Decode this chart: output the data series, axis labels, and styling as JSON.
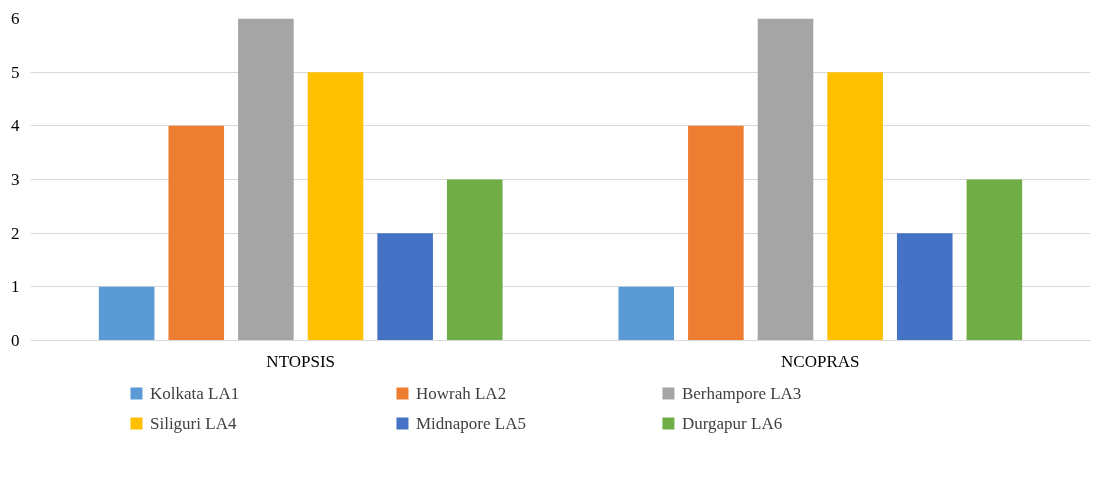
{
  "chart_data": {
    "type": "bar",
    "categories": [
      "NTOPSIS",
      "NCOPRAS"
    ],
    "series": [
      {
        "name": "Kolkata LA1",
        "color": "#5b9bd5",
        "values": [
          1,
          1
        ]
      },
      {
        "name": "Howrah LA2",
        "color": "#ed7d31",
        "values": [
          4,
          4
        ]
      },
      {
        "name": "Berhampore LA3",
        "color": "#a5a5a5",
        "values": [
          6,
          6
        ]
      },
      {
        "name": "Siliguri LA4",
        "color": "#ffc000",
        "values": [
          5,
          5
        ]
      },
      {
        "name": "Midnapore LA5",
        "color": "#4472c4",
        "values": [
          2,
          2
        ]
      },
      {
        "name": "Durgapur LA6",
        "color": "#70ad47",
        "values": [
          3,
          3
        ]
      }
    ],
    "ylim": [
      0,
      6
    ],
    "yticks": [
      0,
      1,
      2,
      3,
      4,
      5,
      6
    ],
    "grid": "y",
    "legend": "bottom"
  }
}
